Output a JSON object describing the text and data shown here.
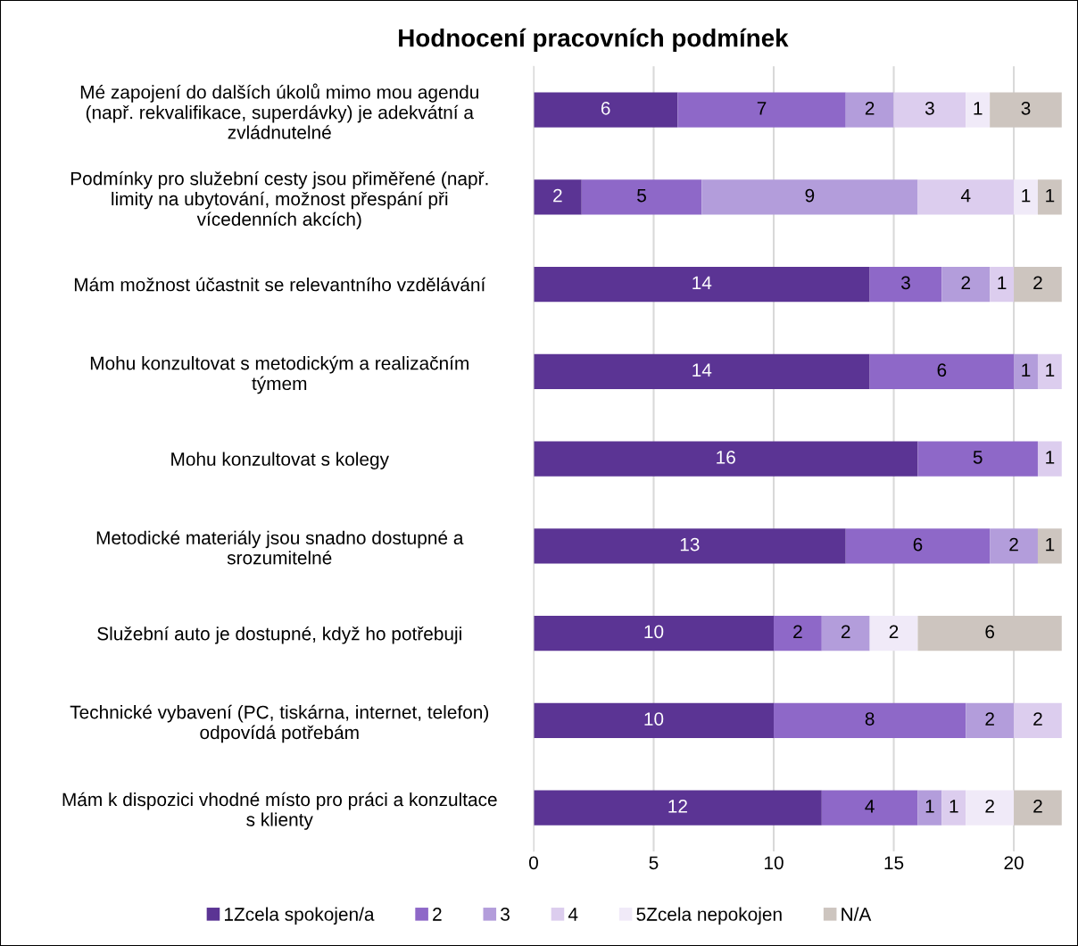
{
  "chart_data": {
    "type": "bar",
    "orientation": "horizontal",
    "stacked": true,
    "title": "Hodnocení pracovních podmínek",
    "categories": [
      "Mé zapojení do dalších úkolů mimo mou agendu\n(např. rekvalifikace, superdávky) je adekvátní a\nzvládnutelné",
      "Podmínky pro služební cesty jsou přiměřené (např.\nlimity na ubytování, možnost přespání při\nvícedenních akcích)",
      "Mám možnost účastnit se relevantního vzdělávání",
      "Mohu konzultovat s metodickým a realizačním\ntýmem",
      "Mohu konzultovat s kolegy",
      "Metodické materiály jsou snadno dostupné a\nsrozumitelné",
      "Služební auto je dostupné, když ho potřebuji",
      "Technické vybavení (PC, tiskárna, internet, telefon)\nodpovídá potřebám",
      "Mám k dispozici vhodné místo pro práci a konzultace\ns klienty"
    ],
    "series": [
      {
        "name": "1Zcela spokojen/a",
        "color": "#5b3494",
        "values": [
          6,
          2,
          14,
          14,
          16,
          13,
          10,
          10,
          12
        ]
      },
      {
        "name": "2",
        "color": "#8e68c8",
        "values": [
          7,
          5,
          3,
          6,
          5,
          6,
          2,
          8,
          4
        ]
      },
      {
        "name": "3",
        "color": "#b39ddb",
        "values": [
          2,
          9,
          2,
          1,
          null,
          2,
          2,
          2,
          1
        ]
      },
      {
        "name": "4",
        "color": "#dccdee",
        "values": [
          3,
          4,
          1,
          1,
          1,
          null,
          null,
          2,
          1
        ]
      },
      {
        "name": "5Zcela nepokojen",
        "color": "#f0eaf8",
        "values": [
          1,
          1,
          null,
          null,
          null,
          null,
          2,
          null,
          2
        ]
      },
      {
        "name": "N/A",
        "color": "#cdc5bf",
        "values": [
          3,
          1,
          2,
          null,
          null,
          1,
          6,
          null,
          2
        ]
      }
    ],
    "xlim": [
      0,
      22
    ],
    "xticks": [
      0,
      5,
      10,
      15,
      20
    ],
    "grid": "x",
    "legend": "bottom",
    "data_labels": true
  }
}
